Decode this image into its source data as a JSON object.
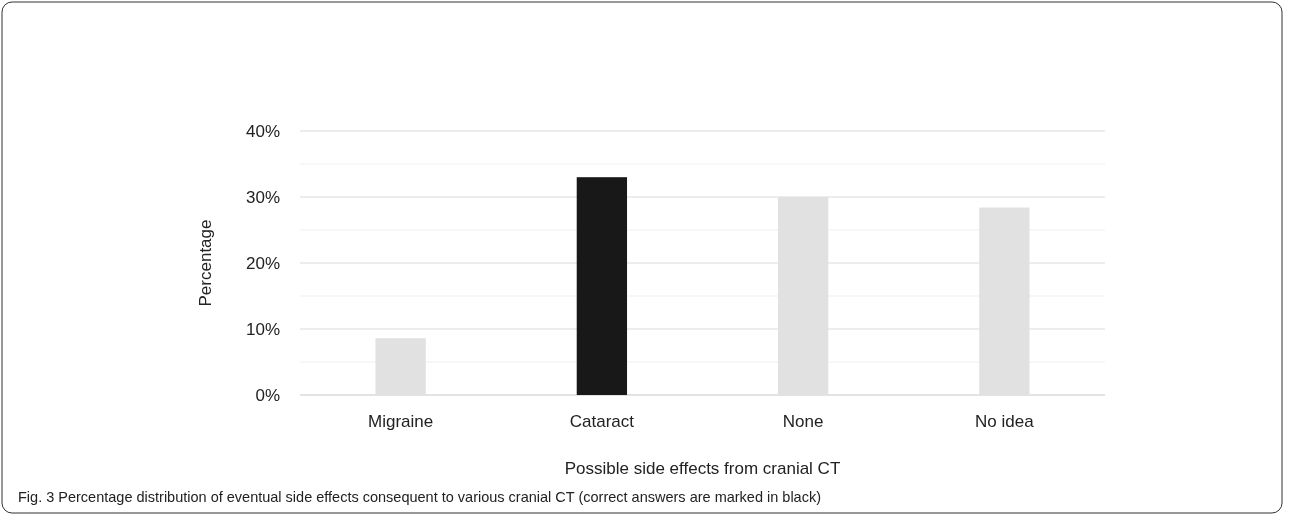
{
  "chart_data": {
    "type": "bar",
    "xlabel": "Possible side effects from cranial CT",
    "ylabel": "Percentage",
    "categories": [
      "Migraine",
      "Cataract",
      "None",
      "No idea"
    ],
    "values": [
      8.6,
      33,
      30,
      28.4
    ],
    "colors": [
      "#e1e1e1",
      "#181818",
      "#e1e1e1",
      "#e1e1e1"
    ],
    "ylim": [
      0,
      40
    ],
    "yticks": [
      {
        "value": 0,
        "label": "0%"
      },
      {
        "value": 5,
        "label": null
      },
      {
        "value": 10,
        "label": "10%"
      },
      {
        "value": 15,
        "label": null
      },
      {
        "value": 20,
        "label": "20%"
      },
      {
        "value": 25,
        "label": null
      },
      {
        "value": 30,
        "label": "30%"
      },
      {
        "value": 35,
        "label": null
      },
      {
        "value": 40,
        "label": "40%"
      }
    ],
    "grid": "y",
    "annotations": [
      "Fig. 3 Percentage distribution of eventual side effects consequent to various cranial CT (correct answers are marked in black)"
    ]
  }
}
